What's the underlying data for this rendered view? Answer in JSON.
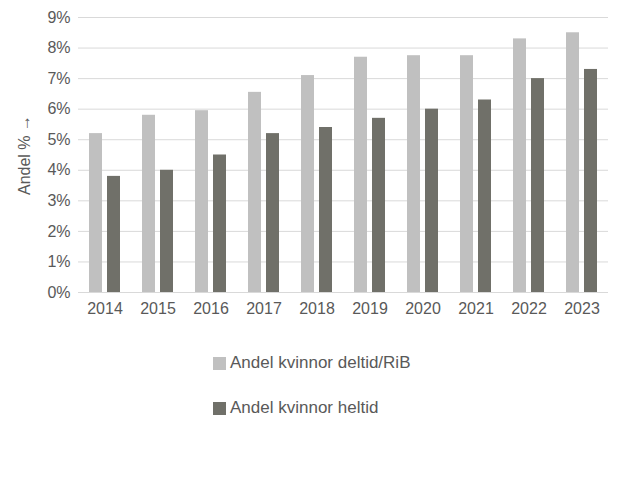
{
  "chart_data": {
    "type": "bar",
    "y_label": "Andel %",
    "categories": [
      "2014",
      "2015",
      "2016",
      "2017",
      "2018",
      "2019",
      "2020",
      "2021",
      "2022",
      "2023"
    ],
    "series": [
      {
        "name": "Andel kvinnor deltid/RiB",
        "color": "#c0c0c0",
        "values": [
          5.2,
          5.8,
          5.95,
          6.55,
          7.1,
          7.7,
          7.75,
          7.75,
          8.3,
          8.5
        ]
      },
      {
        "name": "Andel kvinnor heltid",
        "color": "#707069",
        "values": [
          3.8,
          4.0,
          4.5,
          5.2,
          5.4,
          5.7,
          6.0,
          6.3,
          7.0,
          7.3
        ]
      }
    ],
    "ylim": [
      0,
      9
    ],
    "yticks": [
      {
        "value": 0,
        "label": "0%"
      },
      {
        "value": 1,
        "label": "1%"
      },
      {
        "value": 2,
        "label": "2%"
      },
      {
        "value": 3,
        "label": "3%"
      },
      {
        "value": 4,
        "label": "4%"
      },
      {
        "value": 5,
        "label": "5%"
      },
      {
        "value": 6,
        "label": "6%"
      },
      {
        "value": 7,
        "label": "7%"
      },
      {
        "value": 8,
        "label": "8%"
      },
      {
        "value": 9,
        "label": "9%"
      }
    ],
    "grid": true,
    "legend": "bottom"
  }
}
